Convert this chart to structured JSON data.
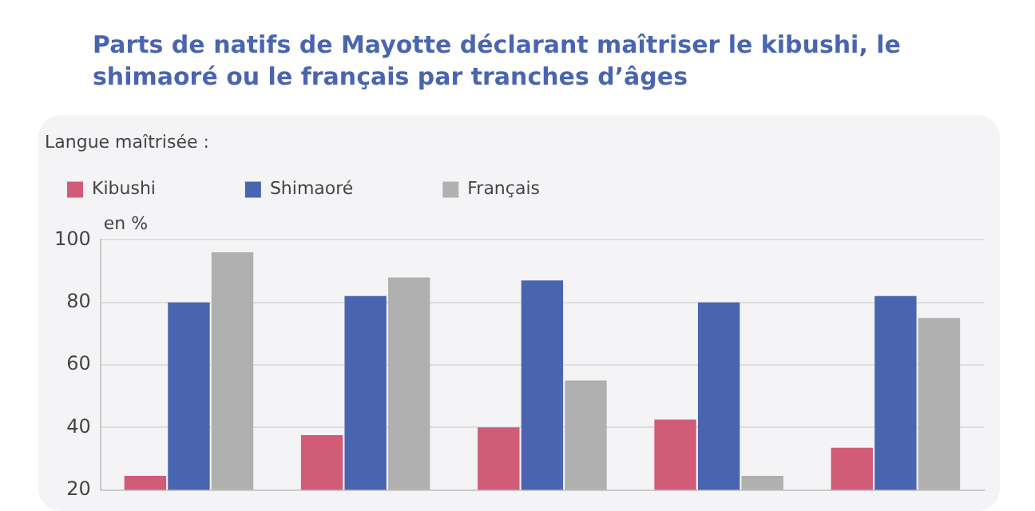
{
  "chart_data": {
    "type": "bar",
    "title": "Parts de natifs de Mayotte déclarant maîtriser le kibushi, le shimaoré ou le français par tranches d’âges",
    "legend_title": "Langue maîtrisée :",
    "ylabel": "en %",
    "categories": [
      null,
      null,
      null,
      null,
      null
    ],
    "series": [
      {
        "name": "Kibushi",
        "color": "#d05c78",
        "values": [
          24.5,
          37.5,
          40,
          42.5,
          33.5
        ]
      },
      {
        "name": "Shimaoré",
        "color": "#4a65b0",
        "values": [
          80,
          82,
          87,
          80,
          82
        ]
      },
      {
        "name": "Français",
        "color": "#b0b0b0",
        "values": [
          96,
          88,
          55,
          24.5,
          75
        ]
      }
    ],
    "ylim": [
      20,
      100
    ],
    "yticks": [
      20,
      40,
      60,
      80,
      100
    ],
    "grid": "y",
    "legend": "top left"
  }
}
